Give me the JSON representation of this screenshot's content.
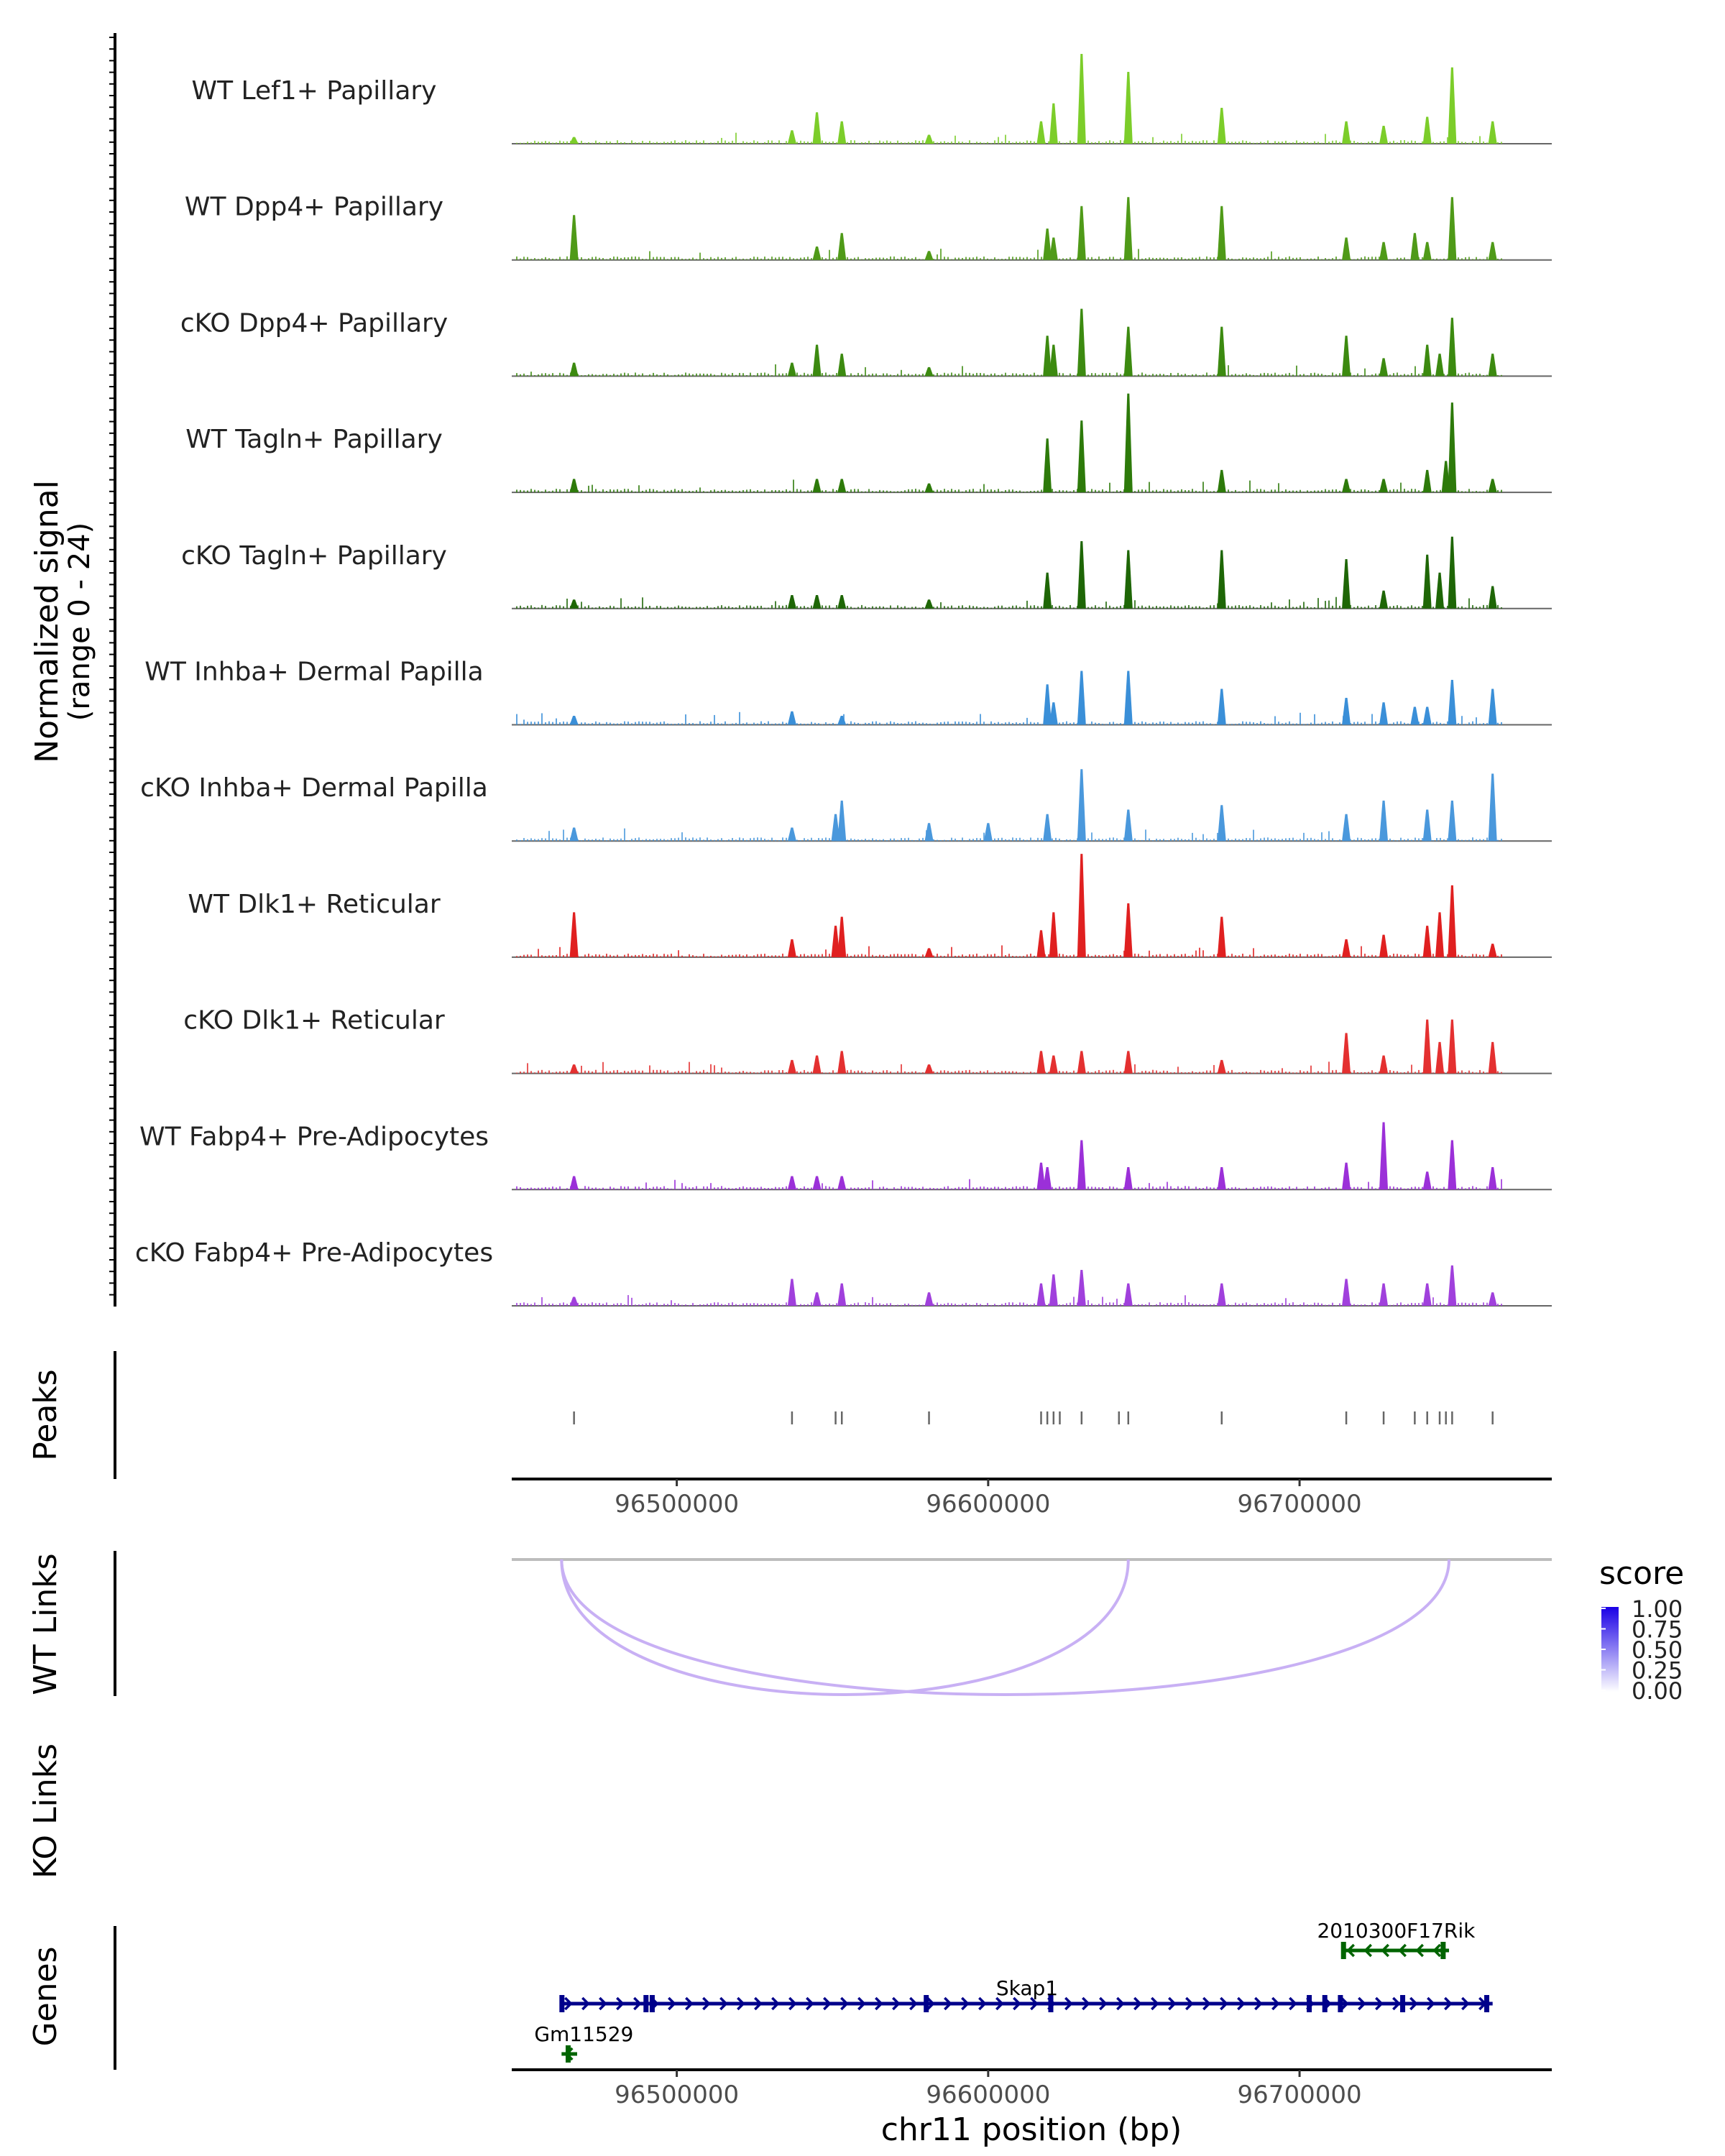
{
  "chart_data": {
    "type": "area",
    "chromosome": "chr11",
    "xlim": [
      96447000,
      96781000
    ],
    "xticks": [
      96500000,
      96600000,
      96700000
    ],
    "xtick_labels": [
      "96500000",
      "96600000",
      "96700000"
    ],
    "xlabel": "chr11 position (bp)",
    "ylabel": "Normalized signal",
    "ylabel_range": "(range 0 - 24)",
    "ylim": [
      0,
      24
    ],
    "peak_positions": [
      96467000,
      96537000,
      96551000,
      96553000,
      96581000,
      96617000,
      96619000,
      96621000,
      96623000,
      96630000,
      96642000,
      96645000,
      96675000,
      96715000,
      96727000,
      96737000,
      96741000,
      96745000,
      96747000,
      96749000,
      96762000
    ],
    "tracks": [
      {
        "name": "WT Lef1+ Papillary",
        "color": "#7ccd2a",
        "peaks": [
          [
            96467000,
            1.5
          ],
          [
            96537000,
            3
          ],
          [
            96545000,
            7
          ],
          [
            96553000,
            5
          ],
          [
            96581000,
            2
          ],
          [
            96617000,
            5
          ],
          [
            96621000,
            9
          ],
          [
            96630000,
            20
          ],
          [
            96645000,
            16
          ],
          [
            96675000,
            8
          ],
          [
            96715000,
            5
          ],
          [
            96727000,
            4
          ],
          [
            96741000,
            6
          ],
          [
            96749000,
            17
          ],
          [
            96762000,
            5
          ]
        ]
      },
      {
        "name": "WT Dpp4+ Papillary",
        "color": "#4f9a18",
        "peaks": [
          [
            96467000,
            10
          ],
          [
            96545000,
            3
          ],
          [
            96553000,
            6
          ],
          [
            96581000,
            2
          ],
          [
            96619000,
            7
          ],
          [
            96621000,
            5
          ],
          [
            96630000,
            12
          ],
          [
            96645000,
            14
          ],
          [
            96675000,
            12
          ],
          [
            96715000,
            5
          ],
          [
            96727000,
            4
          ],
          [
            96737000,
            6
          ],
          [
            96741000,
            4
          ],
          [
            96749000,
            14
          ],
          [
            96762000,
            4
          ]
        ]
      },
      {
        "name": "cKO Dpp4+ Papillary",
        "color": "#3c8a10",
        "peaks": [
          [
            96467000,
            3
          ],
          [
            96537000,
            3
          ],
          [
            96545000,
            7
          ],
          [
            96553000,
            5
          ],
          [
            96581000,
            2
          ],
          [
            96619000,
            9
          ],
          [
            96621000,
            7
          ],
          [
            96630000,
            15
          ],
          [
            96645000,
            11
          ],
          [
            96675000,
            11
          ],
          [
            96715000,
            9
          ],
          [
            96727000,
            4
          ],
          [
            96741000,
            7
          ],
          [
            96745000,
            5
          ],
          [
            96749000,
            13
          ],
          [
            96762000,
            5
          ]
        ]
      },
      {
        "name": "WT Tagln+ Papillary",
        "color": "#2d7a0a",
        "peaks": [
          [
            96467000,
            3
          ],
          [
            96545000,
            3
          ],
          [
            96553000,
            3
          ],
          [
            96581000,
            2
          ],
          [
            96619000,
            12
          ],
          [
            96630000,
            16
          ],
          [
            96645000,
            22
          ],
          [
            96675000,
            5
          ],
          [
            96715000,
            3
          ],
          [
            96727000,
            3
          ],
          [
            96741000,
            5
          ],
          [
            96747000,
            7
          ],
          [
            96749000,
            20
          ],
          [
            96762000,
            3
          ]
        ]
      },
      {
        "name": "cKO Tagln+ Papillary",
        "color": "#1e6606",
        "peaks": [
          [
            96467000,
            2
          ],
          [
            96537000,
            3
          ],
          [
            96545000,
            3
          ],
          [
            96553000,
            3
          ],
          [
            96581000,
            2
          ],
          [
            96619000,
            8
          ],
          [
            96630000,
            15
          ],
          [
            96645000,
            13
          ],
          [
            96675000,
            13
          ],
          [
            96715000,
            11
          ],
          [
            96727000,
            4
          ],
          [
            96741000,
            12
          ],
          [
            96745000,
            8
          ],
          [
            96749000,
            16
          ],
          [
            96762000,
            5
          ]
        ]
      },
      {
        "name": "WT Inhba+ Dermal Papilla",
        "color": "#3a8fd8",
        "peaks": [
          [
            96467000,
            2
          ],
          [
            96537000,
            3
          ],
          [
            96553000,
            2
          ],
          [
            96619000,
            9
          ],
          [
            96621000,
            5
          ],
          [
            96630000,
            12
          ],
          [
            96645000,
            12
          ],
          [
            96675000,
            8
          ],
          [
            96715000,
            6
          ],
          [
            96727000,
            5
          ],
          [
            96737000,
            4
          ],
          [
            96741000,
            4
          ],
          [
            96749000,
            10
          ],
          [
            96762000,
            8
          ]
        ]
      },
      {
        "name": "cKO Inhba+ Dermal Papilla",
        "color": "#4a98dc",
        "peaks": [
          [
            96467000,
            3
          ],
          [
            96537000,
            3
          ],
          [
            96551000,
            6
          ],
          [
            96553000,
            9
          ],
          [
            96581000,
            4
          ],
          [
            96600000,
            4
          ],
          [
            96619000,
            6
          ],
          [
            96630000,
            16
          ],
          [
            96645000,
            7
          ],
          [
            96675000,
            8
          ],
          [
            96715000,
            6
          ],
          [
            96727000,
            9
          ],
          [
            96741000,
            7
          ],
          [
            96749000,
            9
          ],
          [
            96762000,
            15
          ]
        ]
      },
      {
        "name": "WT Dlk1+ Reticular",
        "color": "#e02020",
        "peaks": [
          [
            96467000,
            10
          ],
          [
            96537000,
            4
          ],
          [
            96551000,
            7
          ],
          [
            96553000,
            9
          ],
          [
            96581000,
            2
          ],
          [
            96617000,
            6
          ],
          [
            96621000,
            10
          ],
          [
            96630000,
            23
          ],
          [
            96645000,
            12
          ],
          [
            96675000,
            9
          ],
          [
            96715000,
            4
          ],
          [
            96727000,
            5
          ],
          [
            96741000,
            7
          ],
          [
            96745000,
            10
          ],
          [
            96749000,
            16
          ],
          [
            96762000,
            3
          ]
        ]
      },
      {
        "name": "cKO Dlk1+ Reticular",
        "color": "#e43030",
        "peaks": [
          [
            96467000,
            2
          ],
          [
            96537000,
            3
          ],
          [
            96545000,
            4
          ],
          [
            96553000,
            5
          ],
          [
            96581000,
            2
          ],
          [
            96617000,
            5
          ],
          [
            96621000,
            4
          ],
          [
            96630000,
            5
          ],
          [
            96645000,
            5
          ],
          [
            96675000,
            3
          ],
          [
            96715000,
            9
          ],
          [
            96727000,
            4
          ],
          [
            96741000,
            12
          ],
          [
            96745000,
            7
          ],
          [
            96749000,
            12
          ],
          [
            96762000,
            7
          ]
        ]
      },
      {
        "name": "WT Fabp4+ Pre-Adipocytes",
        "color": "#9b30d8",
        "peaks": [
          [
            96467000,
            3
          ],
          [
            96537000,
            3
          ],
          [
            96545000,
            3
          ],
          [
            96553000,
            3
          ],
          [
            96617000,
            6
          ],
          [
            96619000,
            5
          ],
          [
            96630000,
            11
          ],
          [
            96645000,
            5
          ],
          [
            96675000,
            5
          ],
          [
            96715000,
            6
          ],
          [
            96727000,
            15
          ],
          [
            96741000,
            4
          ],
          [
            96749000,
            11
          ],
          [
            96762000,
            5
          ]
        ]
      },
      {
        "name": "cKO Fabp4+ Pre-Adipocytes",
        "color": "#a040dc",
        "peaks": [
          [
            96467000,
            2
          ],
          [
            96537000,
            6
          ],
          [
            96545000,
            3
          ],
          [
            96553000,
            5
          ],
          [
            96581000,
            3
          ],
          [
            96617000,
            5
          ],
          [
            96621000,
            7
          ],
          [
            96630000,
            8
          ],
          [
            96645000,
            5
          ],
          [
            96675000,
            5
          ],
          [
            96715000,
            6
          ],
          [
            96727000,
            5
          ],
          [
            96741000,
            5
          ],
          [
            96749000,
            9
          ],
          [
            96762000,
            3
          ]
        ]
      }
    ],
    "panels": {
      "peaks": "Peaks",
      "wt_links": "WT Links",
      "ko_links": "KO Links",
      "genes": "Genes"
    },
    "links": {
      "wt": [
        {
          "start": 96463000,
          "end": 96645000,
          "score": 0.25
        },
        {
          "start": 96463000,
          "end": 96748000,
          "score": 0.25
        }
      ],
      "ko": []
    },
    "legend": {
      "title": "score",
      "ticks": [
        "1.00",
        "0.75",
        "0.50",
        "0.25",
        "0.00"
      ],
      "color_low": "#ffffff",
      "color_high": "#1a00e6",
      "placement": "right"
    },
    "genes": [
      {
        "name": "Skap1",
        "start": 96463000,
        "end": 96762000,
        "strand": "+",
        "color": "#00008b",
        "exons": [
          96463000,
          96490000,
          96492000,
          96580000,
          96620000,
          96703000,
          96708000,
          96713000,
          96733000,
          96760000
        ]
      },
      {
        "name": "2010300F17Rik",
        "start": 96714000,
        "end": 96748000,
        "strand": "-",
        "color": "#006400",
        "exons": [
          96714000,
          96746000
        ]
      },
      {
        "name": "Gm11529",
        "start": 96463000,
        "end": 96468000,
        "strand": "-",
        "color": "#006400",
        "exons": [
          96465000
        ]
      }
    ]
  }
}
